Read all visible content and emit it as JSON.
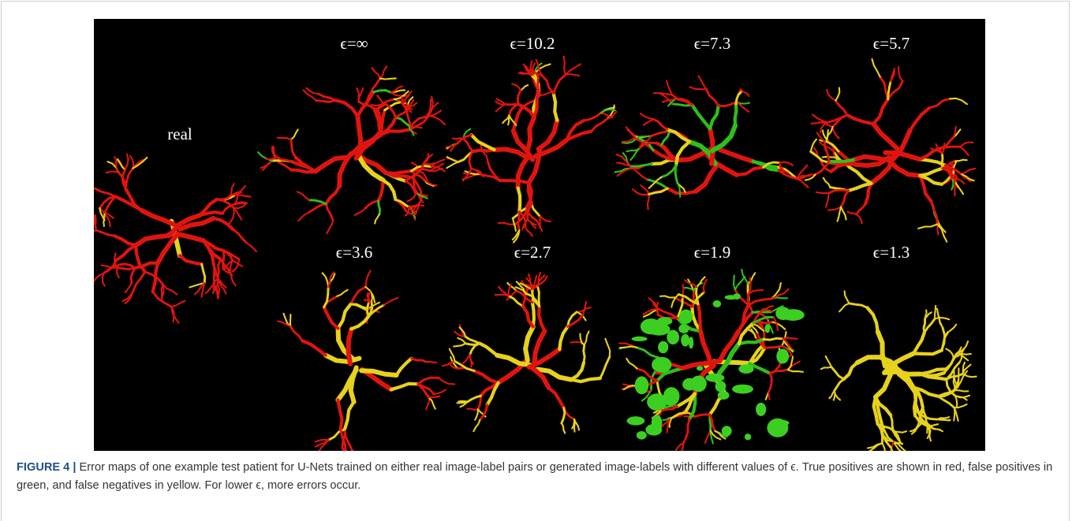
{
  "figure": {
    "panels": [
      {
        "label": "real"
      },
      {
        "label": "ϵ=∞"
      },
      {
        "label": "ϵ=10.2"
      },
      {
        "label": "ϵ=7.3"
      },
      {
        "label": "ϵ=5.7"
      },
      {
        "label": "ϵ=3.6"
      },
      {
        "label": "ϵ=2.7"
      },
      {
        "label": "ϵ=1.9"
      },
      {
        "label": "ϵ=1.3"
      }
    ],
    "caption": {
      "label": "FIGURE 4 |",
      "text": "Error maps of one example test patient for U-Nets trained on either real image-label pairs or generated image-labels with different values of ϵ. True positives are shown in red, false positives in green, and false negatives in yellow. For lower ϵ, more errors occur."
    }
  }
}
